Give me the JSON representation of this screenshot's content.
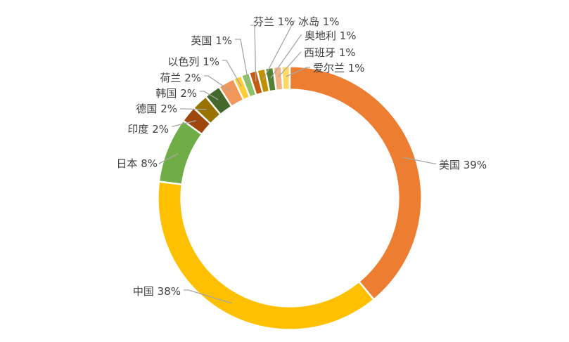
{
  "chart_data": {
    "type": "pie",
    "variant": "doughnut",
    "title": "",
    "legend": "none",
    "slices": [
      {
        "label": "美国",
        "value": 39,
        "display": "39%",
        "color": "#ED7D31"
      },
      {
        "label": "中国",
        "value": 38,
        "display": "38%",
        "color": "#FFC000"
      },
      {
        "label": "日本",
        "value": 8,
        "display": "8%",
        "color": "#70AD47"
      },
      {
        "label": "印度",
        "value": 2,
        "display": "2%",
        "color": "#9E480E"
      },
      {
        "label": "德国",
        "value": 2,
        "display": "2%",
        "color": "#997300"
      },
      {
        "label": "韩国",
        "value": 2,
        "display": "2%",
        "color": "#43682B"
      },
      {
        "label": "荷兰",
        "value": 2,
        "display": "2%",
        "color": "#F1975A"
      },
      {
        "label": "以色列",
        "value": 1,
        "display": "1%",
        "color": "#FFCD33"
      },
      {
        "label": "英国",
        "value": 1,
        "display": "1%",
        "color": "#8CC168"
      },
      {
        "label": "芬兰",
        "value": 1,
        "display": "1%",
        "color": "#C55A11"
      },
      {
        "label": "冰岛",
        "value": 1,
        "display": "1%",
        "color": "#BF9000"
      },
      {
        "label": "奥地利",
        "value": 1,
        "display": "1%",
        "color": "#548235"
      },
      {
        "label": "西班牙",
        "value": 1,
        "display": "1%",
        "color": "#F4B183"
      },
      {
        "label": "爱尔兰",
        "value": 1,
        "display": "1%",
        "color": "#FFD966"
      }
    ]
  }
}
